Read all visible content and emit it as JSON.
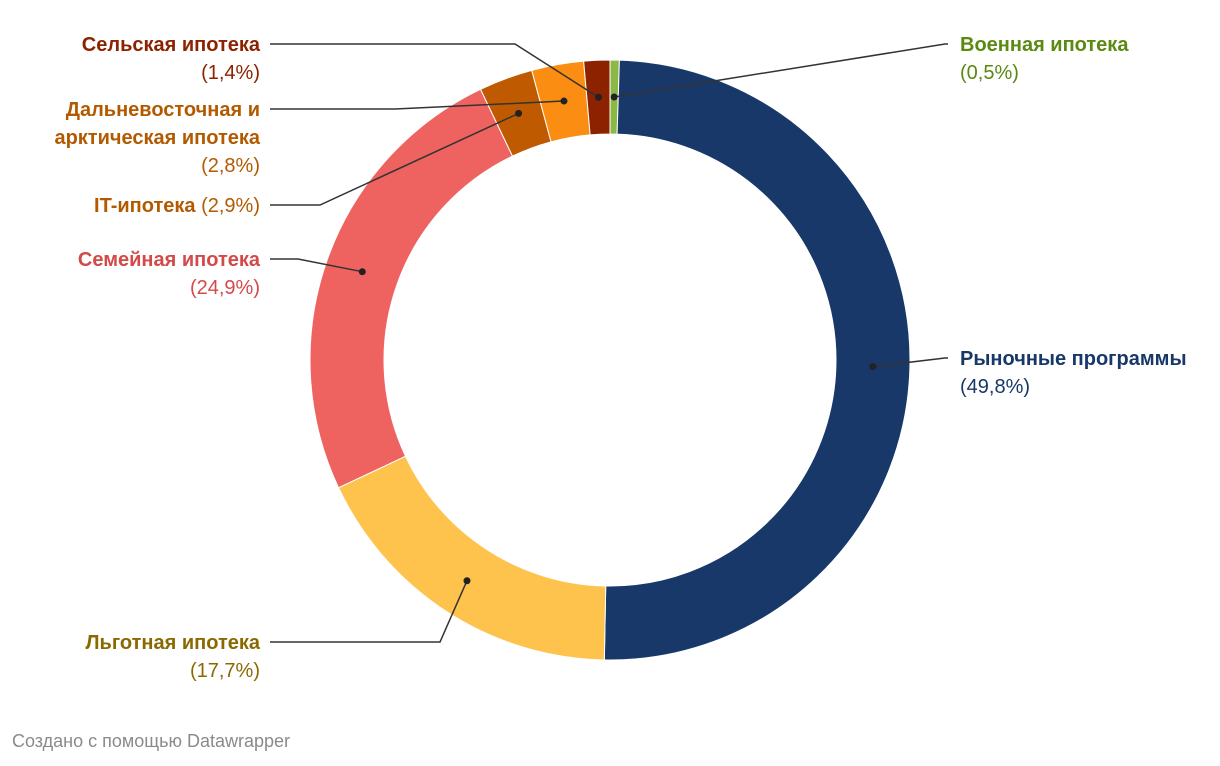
{
  "chart_data": {
    "type": "pie",
    "variant": "donut",
    "series": [
      {
        "name": "Военная ипотека",
        "value": 0.5,
        "value_label": "(0,5%)",
        "color": "#8bb847",
        "label_color": "#5a8a12"
      },
      {
        "name": "Рыночные программы",
        "value": 49.8,
        "value_label": "(49,8%)",
        "color": "#173869",
        "label_color": "#173869"
      },
      {
        "name": "Льготная ипотека",
        "value": 17.7,
        "value_label": "(17,7%)",
        "color": "#fec34d",
        "label_color": "#8a6a00"
      },
      {
        "name": "Семейная ипотека",
        "value": 24.9,
        "value_label": "(24,9%)",
        "color": "#ee6260",
        "label_color": "#d44949"
      },
      {
        "name": "IT-ипотека",
        "value": 2.9,
        "value_label": "(2,9%)",
        "color": "#bf5a00",
        "label_color": "#b35a00"
      },
      {
        "name": "Дальневосточная и арктическая ипотека",
        "name_lines": [
          "Дальневосточная и",
          "арктическая ипотека"
        ],
        "value": 2.8,
        "value_label": "(2,8%)",
        "color": "#fb8e12",
        "label_color": "#b35a00"
      },
      {
        "name": "Сельская ипотека",
        "value": 1.4,
        "value_label": "(1,4%)",
        "color": "#8c2200",
        "label_color": "#8c2200"
      }
    ]
  },
  "footer": {
    "credit": "Создано с помощью Datawrapper"
  }
}
